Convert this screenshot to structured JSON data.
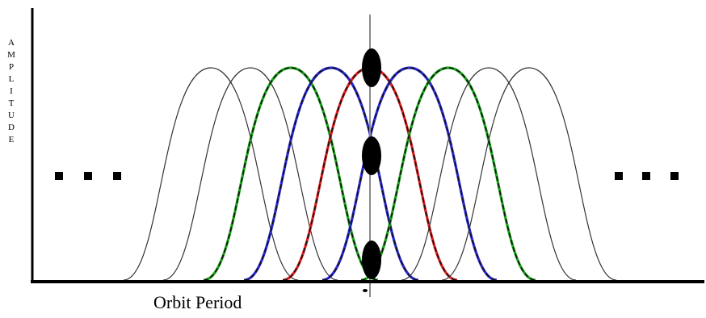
{
  "diagram": {
    "y_axis_label": "A\nM\nP\nL\nI\nT\nU\nD\nE",
    "x_axis_label": "Orbit Period",
    "colors": {
      "axis": "#000000",
      "center_line": "#8a8a8a",
      "pulse_outline": "#333333",
      "green": "#1aa61a",
      "blue": "#2a2ad8",
      "red": "#e02020",
      "marker": "#000000"
    },
    "pulses": [
      {
        "color": "gray"
      },
      {
        "color": "gray"
      },
      {
        "color": "green"
      },
      {
        "color": "blue"
      },
      {
        "color": "red"
      },
      {
        "color": "blue"
      },
      {
        "color": "green"
      },
      {
        "color": "gray"
      },
      {
        "color": "gray"
      }
    ],
    "ellipsis_left": "...",
    "ellipsis_right": "...",
    "markers": [
      "top",
      "middle",
      "bottom"
    ]
  }
}
